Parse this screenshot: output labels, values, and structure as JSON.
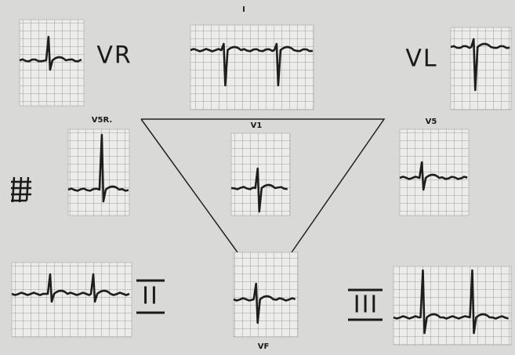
{
  "labels": {
    "top": "I",
    "vr": "VR",
    "vl": "VL",
    "v5r": "V5R.",
    "v1": "V1",
    "v5": "V5",
    "ii": "II",
    "iii": "III",
    "vf": "VF"
  }
}
